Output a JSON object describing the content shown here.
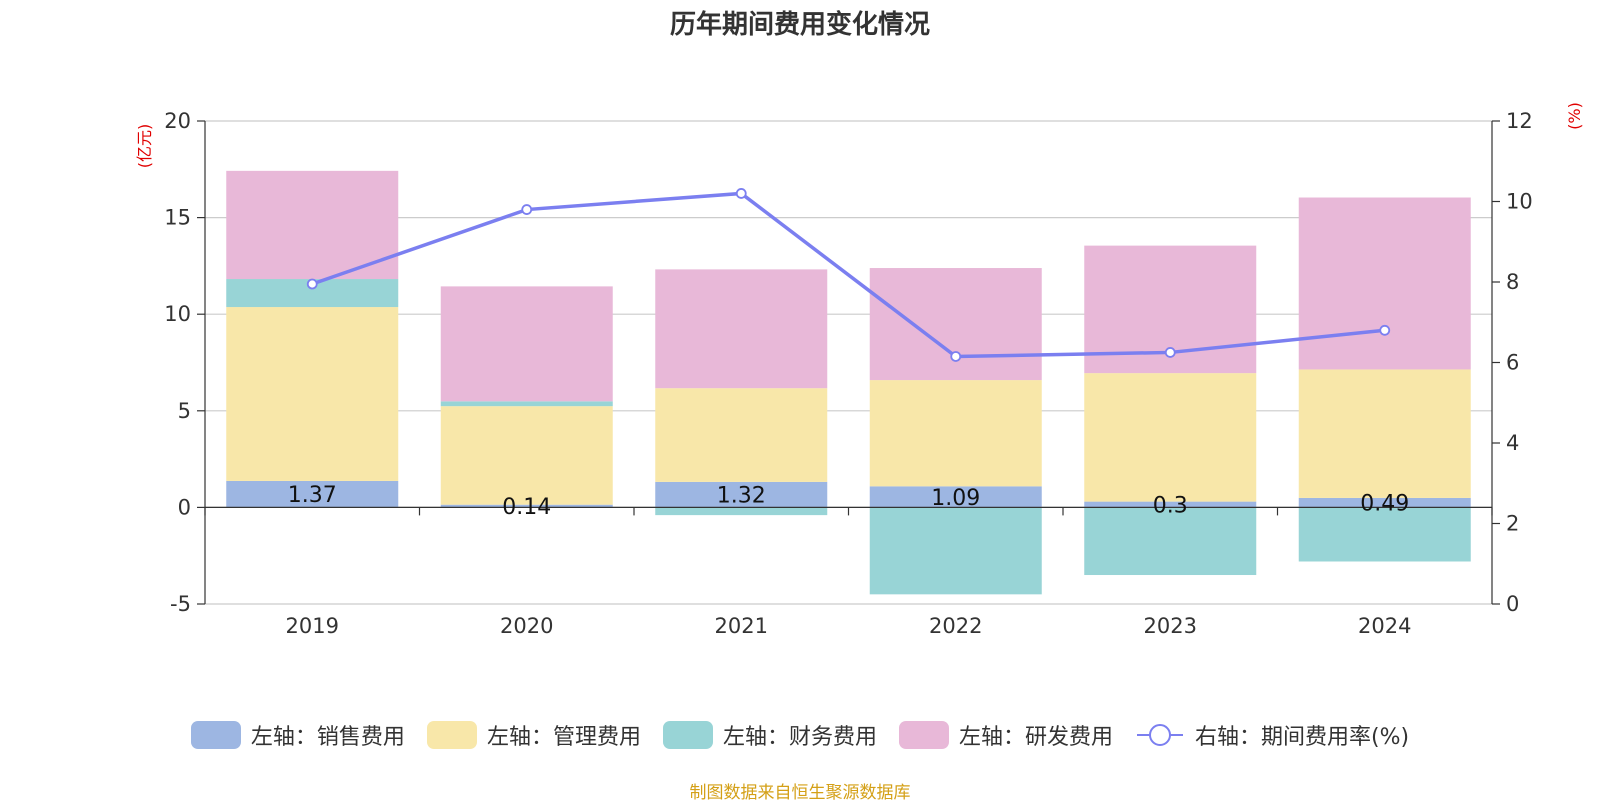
{
  "title": "历年期间费用变化情况",
  "source": "制图数据来自恒生聚源数据库",
  "chart_data": {
    "type": "bar",
    "stacked": true,
    "categories": [
      "2019",
      "2020",
      "2021",
      "2022",
      "2023",
      "2024"
    ],
    "left_axis": {
      "unit": "(亿元)",
      "ylim": [
        -5,
        20
      ],
      "ticks": [
        "20",
        "15",
        "10",
        "5",
        "0",
        "-5"
      ]
    },
    "right_axis": {
      "unit": "(%)",
      "ylim": [
        0,
        12
      ],
      "ticks": [
        "12",
        "10",
        "8",
        "6",
        "4",
        "2",
        "0"
      ]
    },
    "grid": true,
    "series": [
      {
        "name": "左轴：销售费用",
        "type": "bar",
        "color": "#9db6e2",
        "values": [
          1.37,
          0.14,
          1.32,
          1.09,
          0.3,
          0.49
        ],
        "labels": [
          "1.37",
          "0.14",
          "1.32",
          "1.09",
          "0.3",
          "0.49"
        ]
      },
      {
        "name": "左轴：管理费用",
        "type": "bar",
        "color": "#f8e7a9",
        "values": [
          9.0,
          5.1,
          4.85,
          5.5,
          6.65,
          6.65
        ]
      },
      {
        "name": "左轴：财务费用",
        "type": "bar",
        "color": "#98d4d6",
        "values": [
          1.45,
          0.25,
          -0.4,
          -4.5,
          -3.5,
          -2.8
        ]
      },
      {
        "name": "左轴：研发费用",
        "type": "bar",
        "color": "#e8b8d8",
        "values": [
          5.6,
          5.95,
          6.15,
          5.8,
          6.6,
          8.9
        ]
      },
      {
        "name": "右轴：期间费用率(%)",
        "type": "line",
        "axis": "right",
        "color": "#7b7ff0",
        "values": [
          7.95,
          9.8,
          10.2,
          6.15,
          6.25,
          6.8
        ]
      }
    ],
    "legend_position": "bottom"
  }
}
